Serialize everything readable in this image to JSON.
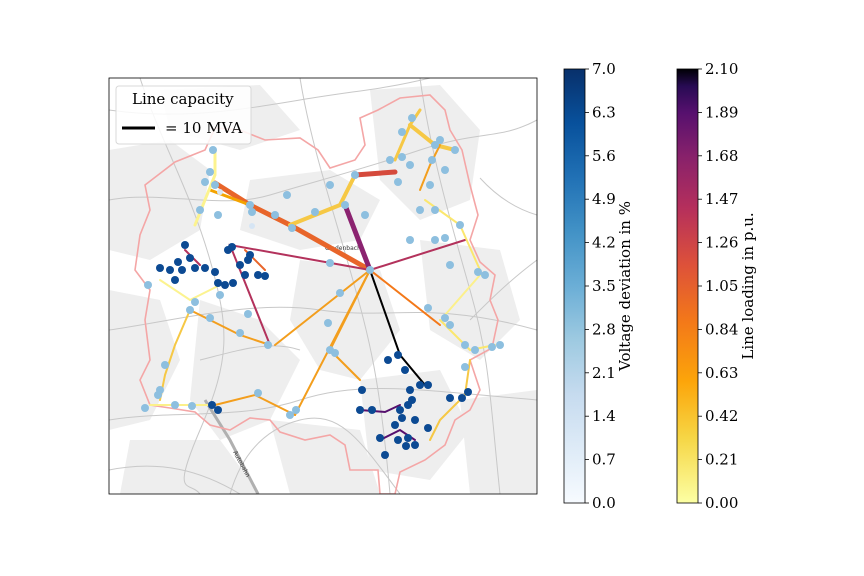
{
  "legend": {
    "title": "Line capacity",
    "entry": "= 10 MVA"
  },
  "map_labels": {
    "town_center": "Gladenbach",
    "road": "Autobahn"
  },
  "colorbars": {
    "voltage": {
      "label": "Voltage deviation in %",
      "min": 0.0,
      "max": 7.0,
      "ticks": [
        "0.0",
        "0.7",
        "1.4",
        "2.1",
        "2.8",
        "3.5",
        "4.2",
        "4.9",
        "5.6",
        "6.3",
        "7.0"
      ],
      "colormap": "Blues"
    },
    "loading": {
      "label": "Line loading in p.u.",
      "min": 0.0,
      "max": 2.1,
      "ticks": [
        "0.00",
        "0.21",
        "0.42",
        "0.63",
        "0.84",
        "1.05",
        "1.26",
        "1.47",
        "1.68",
        "1.89",
        "2.10"
      ],
      "colormap": "inferno_r"
    }
  },
  "colors": {
    "boundary": "#f4a6a6",
    "roads": "#c8c8c8",
    "settlements": "#efefef"
  }
}
